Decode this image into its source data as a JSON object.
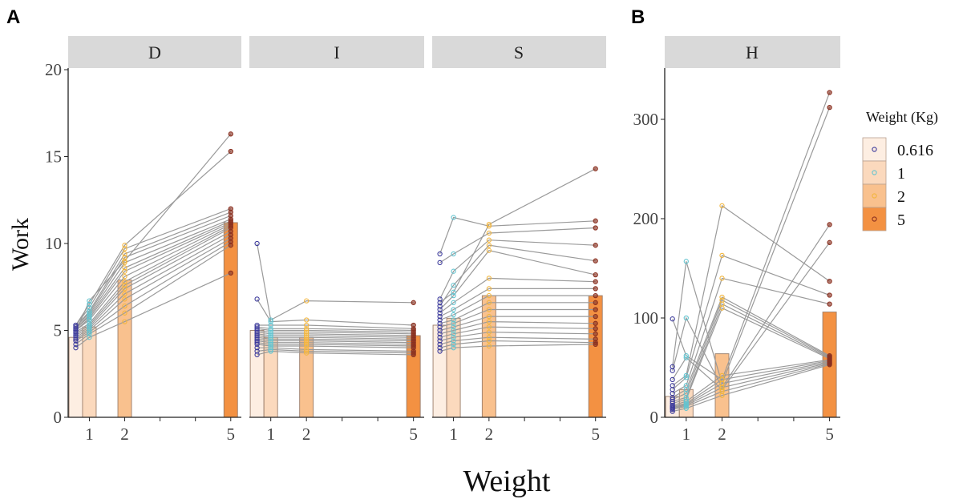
{
  "figure": {
    "panel_a_letter": "A",
    "panel_b_letter": "B",
    "ylabel": "Work",
    "xlabel": "Weight"
  },
  "legend": {
    "title": "Weight (Kg)",
    "entries": [
      {
        "label": "0.616",
        "fill": "#fdeee2",
        "point": "#3d3b9c"
      },
      {
        "label": "1",
        "fill": "#fbd9bd",
        "point": "#63c4d0"
      },
      {
        "label": "2",
        "fill": "#f9c18e",
        "point": "#f2b53d"
      },
      {
        "label": "5",
        "fill": "#f39142",
        "point": "#8a3020"
      }
    ]
  },
  "colors": {
    "line": "#9a9a9a",
    "bar_stroke": "#9a7d6a",
    "strip_bg": "#d9d9d9"
  },
  "chart_data": [
    {
      "type": "bar",
      "facet": "D",
      "x_ticks": [
        1,
        2,
        5
      ],
      "xlim": [
        0.4,
        5.3
      ],
      "ylim": [
        0,
        20
      ],
      "y_ticks": [
        0,
        5,
        10,
        15,
        20
      ],
      "bars": [
        {
          "weight": 0.616,
          "mean": 4.6
        },
        {
          "weight": 1,
          "mean": 5.2
        },
        {
          "weight": 2,
          "mean": 7.9
        },
        {
          "weight": 5,
          "mean": 11.2
        }
      ],
      "subjects": [
        [
          4.0,
          4.6,
          5.5,
          8.3
        ],
        [
          4.2,
          4.8,
          6.0,
          9.9
        ],
        [
          4.4,
          4.9,
          6.4,
          10.1
        ],
        [
          4.5,
          5.0,
          6.8,
          10.3
        ],
        [
          4.6,
          5.1,
          7.1,
          10.5
        ],
        [
          4.7,
          5.2,
          7.4,
          10.7
        ],
        [
          4.8,
          5.3,
          7.6,
          10.9
        ],
        [
          4.9,
          5.4,
          7.8,
          11.0
        ],
        [
          5.0,
          5.6,
          8.1,
          11.1
        ],
        [
          5.0,
          5.7,
          8.4,
          11.2
        ],
        [
          5.1,
          5.8,
          8.6,
          11.3
        ],
        [
          5.1,
          5.9,
          8.9,
          11.4
        ],
        [
          5.2,
          6.0,
          9.2,
          11.6
        ],
        [
          5.2,
          6.1,
          9.4,
          11.8
        ],
        [
          5.3,
          6.3,
          9.7,
          12.0
        ],
        [
          5.3,
          6.5,
          9.9,
          15.3
        ],
        [
          4.9,
          6.7,
          9.0,
          16.3
        ]
      ]
    },
    {
      "type": "bar",
      "facet": "I",
      "x_ticks": [
        1,
        2,
        5
      ],
      "xlim": [
        0.4,
        5.3
      ],
      "ylim": [
        0,
        20
      ],
      "y_ticks": [
        0,
        5,
        10,
        15,
        20
      ],
      "bars": [
        {
          "weight": 0.616,
          "mean": 5.0
        },
        {
          "weight": 1,
          "mean": 4.6
        },
        {
          "weight": 2,
          "mean": 4.6
        },
        {
          "weight": 5,
          "mean": 4.7
        }
      ],
      "subjects": [
        [
          3.6,
          3.8,
          3.7,
          3.6
        ],
        [
          3.8,
          3.9,
          3.8,
          3.7
        ],
        [
          4.0,
          4.0,
          3.9,
          3.8
        ],
        [
          4.2,
          4.1,
          4.1,
          4.0
        ],
        [
          4.3,
          4.2,
          4.2,
          4.1
        ],
        [
          4.4,
          4.3,
          4.3,
          4.2
        ],
        [
          4.5,
          4.4,
          4.4,
          4.3
        ],
        [
          4.6,
          4.5,
          4.5,
          4.4
        ],
        [
          4.7,
          4.6,
          4.6,
          4.5
        ],
        [
          4.8,
          4.7,
          4.7,
          4.6
        ],
        [
          4.9,
          4.8,
          4.8,
          4.7
        ],
        [
          5.0,
          4.9,
          4.9,
          4.8
        ],
        [
          5.1,
          5.0,
          5.0,
          4.9
        ],
        [
          5.2,
          5.1,
          5.1,
          5.0
        ],
        [
          5.3,
          5.3,
          5.3,
          5.1
        ],
        [
          6.8,
          5.5,
          5.6,
          5.3
        ],
        [
          10.0,
          5.6,
          6.7,
          6.6
        ]
      ]
    },
    {
      "type": "bar",
      "facet": "S",
      "x_ticks": [
        1,
        2,
        5
      ],
      "xlim": [
        0.4,
        5.3
      ],
      "ylim": [
        0,
        20
      ],
      "y_ticks": [
        0,
        5,
        10,
        15,
        20
      ],
      "bars": [
        {
          "weight": 0.616,
          "mean": 5.3
        },
        {
          "weight": 1,
          "mean": 5.7
        },
        {
          "weight": 2,
          "mean": 7.0
        },
        {
          "weight": 5,
          "mean": 7.0
        }
      ],
      "subjects": [
        [
          3.8,
          4.0,
          4.1,
          4.2
        ],
        [
          4.0,
          4.2,
          4.4,
          4.3
        ],
        [
          4.2,
          4.4,
          4.6,
          4.5
        ],
        [
          4.4,
          4.6,
          4.9,
          4.8
        ],
        [
          4.6,
          4.8,
          5.2,
          5.1
        ],
        [
          4.8,
          5.0,
          5.5,
          5.4
        ],
        [
          5.0,
          5.2,
          5.8,
          5.8
        ],
        [
          5.2,
          5.4,
          6.2,
          6.2
        ],
        [
          5.4,
          5.6,
          6.6,
          6.6
        ],
        [
          5.6,
          5.9,
          7.0,
          7.0
        ],
        [
          5.8,
          6.2,
          7.4,
          7.4
        ],
        [
          6.0,
          6.6,
          8.0,
          7.8
        ],
        [
          6.2,
          7.0,
          9.6,
          8.2
        ],
        [
          6.4,
          7.6,
          9.9,
          9.0
        ],
        [
          6.8,
          8.4,
          10.2,
          9.9
        ],
        [
          8.9,
          9.4,
          10.6,
          10.9
        ],
        [
          9.4,
          11.5,
          11.0,
          11.3
        ],
        [
          6.6,
          7.2,
          11.1,
          14.3
        ]
      ]
    },
    {
      "type": "bar",
      "facet": "H",
      "x_ticks": [
        1,
        2,
        5
      ],
      "xlim": [
        0.4,
        5.3
      ],
      "ylim": [
        0,
        350
      ],
      "y_ticks": [
        0,
        100,
        200,
        300
      ],
      "bars": [
        {
          "weight": 0.616,
          "mean": 21
        },
        {
          "weight": 1,
          "mean": 28
        },
        {
          "weight": 2,
          "mean": 64
        },
        {
          "weight": 5,
          "mean": 106
        }
      ],
      "subjects": [
        [
          6,
          9,
          22,
          53
        ],
        [
          8,
          11,
          26,
          54
        ],
        [
          9,
          12,
          30,
          55
        ],
        [
          10,
          13,
          34,
          56
        ],
        [
          11,
          14,
          38,
          57
        ],
        [
          12,
          16,
          42,
          58
        ],
        [
          14,
          18,
          110,
          59
        ],
        [
          16,
          20,
          114,
          60
        ],
        [
          18,
          24,
          118,
          61
        ],
        [
          20,
          28,
          121,
          62
        ],
        [
          24,
          32,
          140,
          114
        ],
        [
          28,
          40,
          163,
          123
        ],
        [
          32,
          42,
          213,
          137
        ],
        [
          38,
          60,
          28,
          176
        ],
        [
          47,
          100,
          30,
          194
        ],
        [
          51,
          157,
          34,
          312
        ],
        [
          99,
          62,
          38,
          327
        ]
      ]
    }
  ]
}
